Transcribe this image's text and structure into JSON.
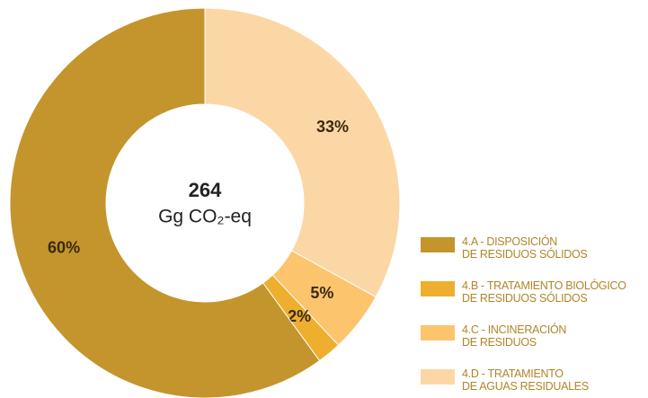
{
  "chart_data": {
    "type": "donut",
    "center_value": 264,
    "center_unit": "Gg CO₂-eq",
    "categories": [
      "4.A - DISPOSICIÓN\nDE RESIDUOS SÓLIDOS",
      "4.B - TRATAMIENTO BIOLÓGICO\nDE RESIDUOS SÓLIDOS",
      "4.C - INCINERACIÓN\nDE RESIDUOS",
      "4.D - TRATAMIENTO\nDE AGUAS RESIDUALES"
    ],
    "values": [
      60,
      2,
      5,
      33
    ],
    "value_labels": [
      "60%",
      "2%",
      "5%",
      "33%"
    ],
    "colors": [
      "#c3952c",
      "#eeaf2e",
      "#fdc46e",
      "#fcd7a6"
    ]
  }
}
